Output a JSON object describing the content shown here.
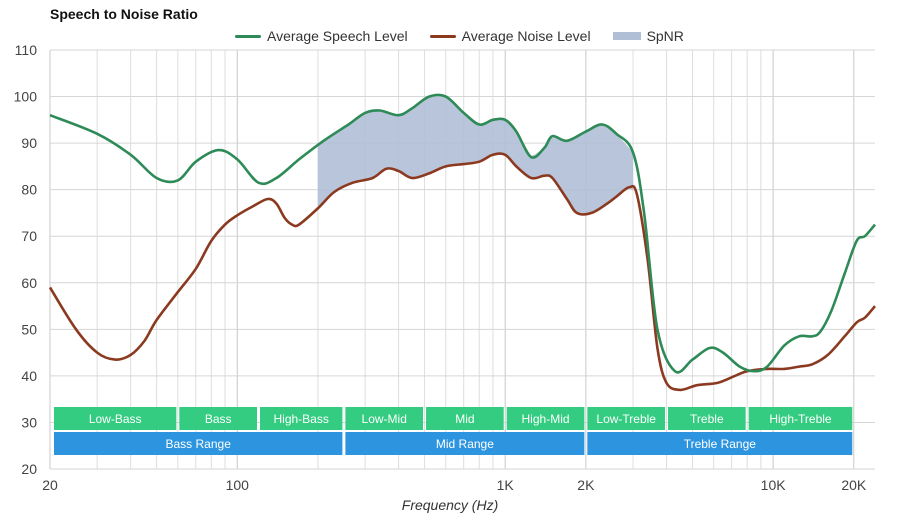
{
  "chart_data": {
    "type": "line",
    "title": "Speech to Noise Ratio",
    "xlabel": "Frequency (Hz)",
    "ylabel": "",
    "xscale": "log",
    "xlim": [
      20,
      24000
    ],
    "ylim": [
      20,
      110
    ],
    "yticks": [
      20,
      30,
      40,
      50,
      60,
      70,
      80,
      90,
      100,
      110
    ],
    "xticks": [
      {
        "value": 20,
        "label": "20"
      },
      {
        "value": 100,
        "label": "100"
      },
      {
        "value": 1000,
        "label": "1K"
      },
      {
        "value": 2000,
        "label": "2K"
      },
      {
        "value": 10000,
        "label": "10K"
      },
      {
        "value": 20000,
        "label": "20K"
      }
    ],
    "grid": true,
    "legend_position": "top",
    "series": [
      {
        "name": "Average Speech Level",
        "color": "#2e8b57",
        "points": [
          [
            20,
            96
          ],
          [
            30,
            92
          ],
          [
            40,
            87.5
          ],
          [
            50,
            82.5
          ],
          [
            60,
            82
          ],
          [
            70,
            86
          ],
          [
            85,
            88.5
          ],
          [
            100,
            86.5
          ],
          [
            120,
            81.5
          ],
          [
            140,
            82.5
          ],
          [
            170,
            86.5
          ],
          [
            210,
            90.5
          ],
          [
            260,
            94
          ],
          [
            300,
            96.5
          ],
          [
            340,
            97
          ],
          [
            400,
            96
          ],
          [
            450,
            97.5
          ],
          [
            520,
            100
          ],
          [
            600,
            100
          ],
          [
            700,
            96.5
          ],
          [
            800,
            94
          ],
          [
            900,
            95
          ],
          [
            1000,
            95
          ],
          [
            1100,
            92.5
          ],
          [
            1250,
            87
          ],
          [
            1400,
            89
          ],
          [
            1500,
            91.5
          ],
          [
            1700,
            90.5
          ],
          [
            2000,
            92.5
          ],
          [
            2300,
            94
          ],
          [
            2600,
            92
          ],
          [
            3000,
            88
          ],
          [
            3300,
            75
          ],
          [
            3700,
            50
          ],
          [
            4300,
            41
          ],
          [
            5000,
            43.5
          ],
          [
            5800,
            46
          ],
          [
            6500,
            45
          ],
          [
            7500,
            42
          ],
          [
            8500,
            41
          ],
          [
            9500,
            42
          ],
          [
            11000,
            46.5
          ],
          [
            12500,
            48.5
          ],
          [
            14000,
            48.5
          ],
          [
            15000,
            49.5
          ],
          [
            16500,
            54
          ],
          [
            18500,
            62
          ],
          [
            20500,
            69
          ],
          [
            22000,
            70
          ],
          [
            24000,
            72.5
          ]
        ]
      },
      {
        "name": "Average Noise Level",
        "color": "#8b3a20",
        "points": [
          [
            20,
            59
          ],
          [
            25,
            50
          ],
          [
            30,
            45
          ],
          [
            35,
            43.5
          ],
          [
            40,
            44.5
          ],
          [
            45,
            47.5
          ],
          [
            50,
            52
          ],
          [
            60,
            58
          ],
          [
            70,
            63
          ],
          [
            80,
            69
          ],
          [
            90,
            72.5
          ],
          [
            100,
            74.5
          ],
          [
            115,
            76.5
          ],
          [
            130,
            78
          ],
          [
            140,
            77
          ],
          [
            150,
            74
          ],
          [
            160,
            72.5
          ],
          [
            170,
            72.5
          ],
          [
            200,
            76
          ],
          [
            230,
            79.5
          ],
          [
            270,
            81.5
          ],
          [
            320,
            82.5
          ],
          [
            360,
            84.5
          ],
          [
            400,
            84
          ],
          [
            450,
            82.5
          ],
          [
            520,
            83.5
          ],
          [
            600,
            85
          ],
          [
            700,
            85.5
          ],
          [
            800,
            86
          ],
          [
            900,
            87.5
          ],
          [
            1000,
            87.5
          ],
          [
            1100,
            85
          ],
          [
            1250,
            82.5
          ],
          [
            1400,
            83
          ],
          [
            1500,
            82.5
          ],
          [
            1700,
            78
          ],
          [
            1850,
            75
          ],
          [
            2100,
            75
          ],
          [
            2400,
            77
          ],
          [
            2600,
            78.5
          ],
          [
            2900,
            80.5
          ],
          [
            3100,
            79
          ],
          [
            3400,
            65
          ],
          [
            3700,
            46
          ],
          [
            4000,
            38.5
          ],
          [
            4500,
            37
          ],
          [
            5200,
            38
          ],
          [
            6200,
            38.5
          ],
          [
            7200,
            40
          ],
          [
            8000,
            41
          ],
          [
            9500,
            41.5
          ],
          [
            11000,
            41.5
          ],
          [
            12500,
            42
          ],
          [
            14000,
            42.5
          ],
          [
            16000,
            44.5
          ],
          [
            18500,
            48.5
          ],
          [
            20500,
            51.5
          ],
          [
            22000,
            52.5
          ],
          [
            24000,
            55
          ]
        ]
      }
    ],
    "area": {
      "name": "SpNR",
      "color": "#b0bfd6",
      "x_range": [
        200,
        3000
      ],
      "between": [
        "Average Speech Level",
        "Average Noise Level"
      ]
    },
    "bands": [
      {
        "label": "Low-Bass",
        "start": 20,
        "end": 60,
        "row": 1,
        "color": "#33cc80"
      },
      {
        "label": "Bass",
        "start": 60,
        "end": 120,
        "row": 1,
        "color": "#33cc80"
      },
      {
        "label": "High-Bass",
        "start": 120,
        "end": 250,
        "row": 1,
        "color": "#33cc80"
      },
      {
        "label": "Low-Mid",
        "start": 250,
        "end": 500,
        "row": 1,
        "color": "#33cc80"
      },
      {
        "label": "Mid",
        "start": 500,
        "end": 1000,
        "row": 1,
        "color": "#33cc80"
      },
      {
        "label": "High-Mid",
        "start": 1000,
        "end": 2000,
        "row": 1,
        "color": "#33cc80"
      },
      {
        "label": "Low-Treble",
        "start": 2000,
        "end": 4000,
        "row": 1,
        "color": "#33cc80"
      },
      {
        "label": "Treble",
        "start": 4000,
        "end": 8000,
        "row": 1,
        "color": "#33cc80"
      },
      {
        "label": "High-Treble",
        "start": 8000,
        "end": 20000,
        "row": 1,
        "color": "#33cc80"
      },
      {
        "label": "Bass Range",
        "start": 20,
        "end": 250,
        "row": 2,
        "color": "#2d95e0"
      },
      {
        "label": "Mid Range",
        "start": 250,
        "end": 2000,
        "row": 2,
        "color": "#2d95e0"
      },
      {
        "label": "Treble Range",
        "start": 2000,
        "end": 20000,
        "row": 2,
        "color": "#2d95e0"
      }
    ]
  }
}
